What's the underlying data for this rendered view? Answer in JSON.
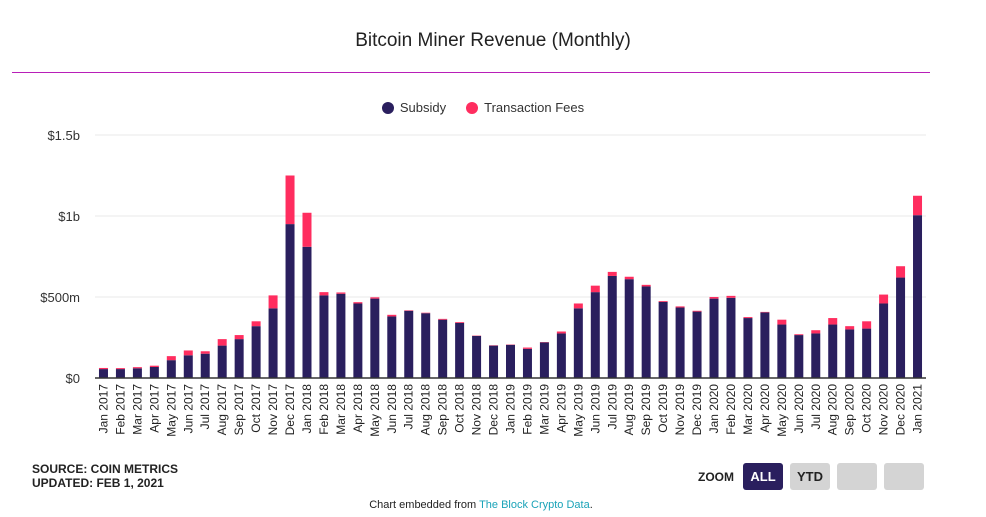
{
  "chart_data": {
    "type": "bar",
    "stacked": true,
    "title": "Bitcoin Miner Revenue (Monthly)",
    "categories": [
      "Jan 2017",
      "Feb 2017",
      "Mar 2017",
      "Apr 2017",
      "May 2017",
      "Jun 2017",
      "Jul 2017",
      "Aug 2017",
      "Sep 2017",
      "Oct 2017",
      "Nov 2017",
      "Dec 2017",
      "Jan 2018",
      "Feb 2018",
      "Mar 2018",
      "Apr 2018",
      "May 2018",
      "Jun 2018",
      "Jul 2018",
      "Aug 2018",
      "Sep 2018",
      "Oct 2018",
      "Nov 2018",
      "Dec 2018",
      "Jan 2019",
      "Feb 2019",
      "Mar 2019",
      "Apr 2019",
      "May 2019",
      "Jun 2019",
      "Jul 2019",
      "Aug 2019",
      "Sep 2019",
      "Oct 2019",
      "Nov 2019",
      "Dec 2019",
      "Jan 2020",
      "Feb 2020",
      "Mar 2020",
      "Apr 2020",
      "May 2020",
      "Jun 2020",
      "Jul 2020",
      "Aug 2020",
      "Sep 2020",
      "Oct 2020",
      "Nov 2020",
      "Dec 2020",
      "Jan 2021"
    ],
    "series": [
      {
        "name": "Subsidy",
        "color": "#2a1f5e",
        "values": [
          55,
          55,
          60,
          68,
          110,
          140,
          150,
          200,
          240,
          320,
          430,
          950,
          810,
          510,
          520,
          460,
          490,
          380,
          415,
          400,
          360,
          340,
          260,
          200,
          205,
          180,
          220,
          275,
          430,
          530,
          630,
          610,
          565,
          470,
          435,
          410,
          490,
          495,
          370,
          405,
          330,
          265,
          275,
          330,
          300,
          305,
          460,
          620,
          1005
        ]
      },
      {
        "name": "Transaction Fees",
        "color": "#ff2d5f",
        "values": [
          7,
          6,
          7,
          8,
          25,
          30,
          15,
          40,
          25,
          30,
          80,
          300,
          210,
          20,
          8,
          8,
          8,
          10,
          3,
          3,
          5,
          5,
          2,
          2,
          2,
          8,
          2,
          12,
          30,
          40,
          25,
          15,
          10,
          5,
          7,
          5,
          10,
          12,
          6,
          3,
          30,
          5,
          20,
          40,
          20,
          45,
          55,
          70,
          120
        ]
      }
    ],
    "unit": "$m",
    "ylim": [
      0,
      1500
    ],
    "yticks": [
      {
        "v": 0,
        "label": "$0"
      },
      {
        "v": 500,
        "label": "$500m"
      },
      {
        "v": 1000,
        "label": "$1b"
      },
      {
        "v": 1500,
        "label": "$1.5b"
      }
    ],
    "grid": true,
    "legend": "top-center"
  },
  "source": {
    "line1": "SOURCE: COIN METRICS",
    "line2": "UPDATED: FEB 1, 2021"
  },
  "zoom": {
    "label": "ZOOM",
    "buttons": [
      "ALL",
      "YTD",
      "",
      ""
    ],
    "selected": "ALL"
  },
  "embed": {
    "prefix": "Chart embedded from ",
    "link": "The Block Crypto Data",
    "suffix": "."
  }
}
